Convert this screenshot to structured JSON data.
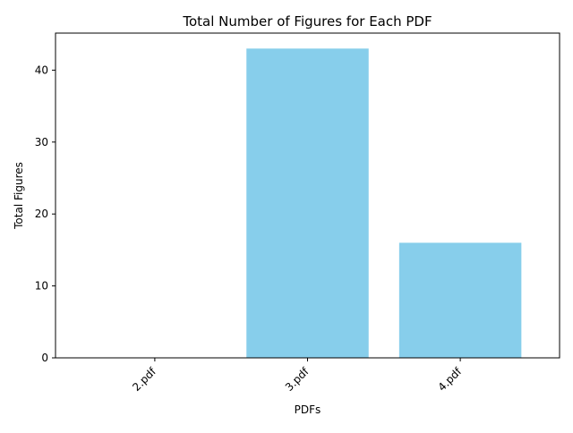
{
  "chart_data": {
    "type": "bar",
    "title": "Total Number of Figures for Each PDF",
    "xlabel": "PDFs",
    "ylabel": "Total Figures",
    "categories": [
      "2.pdf",
      "3.pdf",
      "4.pdf"
    ],
    "values": [
      0,
      43,
      16
    ],
    "ylim": [
      0,
      45.15
    ],
    "yticks": [
      0,
      10,
      20,
      30,
      40
    ],
    "bar_color": "#87ceeb",
    "grid": false,
    "xtick_rotation": 45
  }
}
